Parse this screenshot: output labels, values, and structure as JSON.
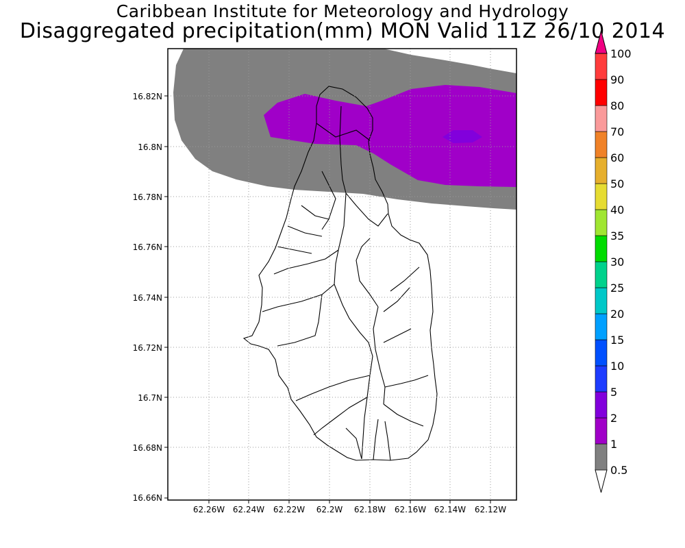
{
  "title_line1": "Caribbean Institute for Meteorology and Hydrology",
  "title_line2": "Disaggregated precipitation(mm) MON Valid 11Z 26/10 2014",
  "map": {
    "lat_ticks": [
      "16.82N",
      "16.8N",
      "16.78N",
      "16.76N",
      "16.74N",
      "16.72N",
      "16.7N",
      "16.68N",
      "16.66N"
    ],
    "lon_ticks": [
      "62.26W",
      "62.24W",
      "62.22W",
      "62.2W",
      "62.18W",
      "62.16W",
      "62.14W",
      "62.12W"
    ],
    "grid": "dotted",
    "shaded_levels_present": [
      {
        "range": "0.5-1",
        "color": "#808080"
      },
      {
        "range": "1-2",
        "color": "#a000c8"
      },
      {
        "range": "2-5",
        "color": "#8200dc"
      }
    ]
  },
  "colorbar": {
    "levels": [
      "0.5",
      "1",
      "2",
      "5",
      "10",
      "15",
      "20",
      "25",
      "30",
      "35",
      "40",
      "50",
      "60",
      "70",
      "80",
      "90",
      "100"
    ],
    "colors": [
      "#808080",
      "#a000c8",
      "#8200dc",
      "#1e3cff",
      "#0050ff",
      "#00a0ff",
      "#00c8c8",
      "#00d28c",
      "#00dc00",
      "#a0e632",
      "#e6dc32",
      "#e6af2d",
      "#f08228",
      "#fa9a9a",
      "#ff0000",
      "#ff3c3c",
      "#f00082"
    ]
  }
}
